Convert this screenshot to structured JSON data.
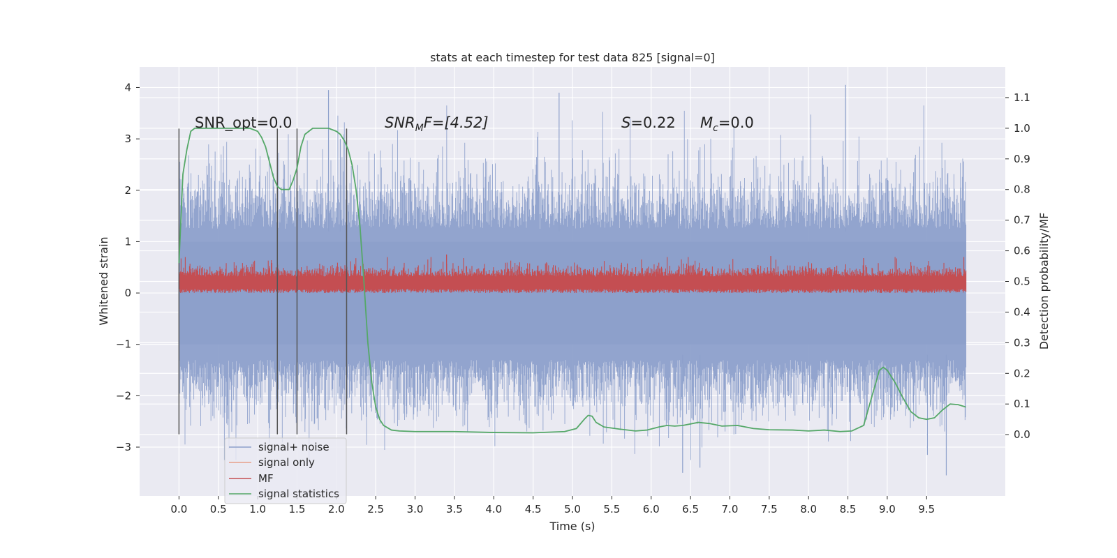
{
  "chart_data": {
    "type": "line",
    "title": "stats at each timestep for test data 825 [signal=0]",
    "xlabel": "Time (s)",
    "ylabel": "Whitened strain",
    "y2label": "Detection probability/MF",
    "xlim": [
      -0.5,
      10.5
    ],
    "ylim": [
      -3.95,
      4.4
    ],
    "y2lim": [
      -0.2,
      1.2
    ],
    "xticks": [
      "0.0",
      "0.5",
      "1.0",
      "1.5",
      "2.0",
      "2.5",
      "3.0",
      "3.5",
      "4.0",
      "4.5",
      "5.0",
      "5.5",
      "6.0",
      "6.5",
      "7.0",
      "7.5",
      "8.0",
      "8.5",
      "9.0",
      "9.5"
    ],
    "yticks": [
      "4",
      "3",
      "2",
      "1",
      "0",
      "−1",
      "−2",
      "−3"
    ],
    "y2ticks": [
      "1.1",
      "1.0",
      "0.9",
      "0.8",
      "0.7",
      "0.6",
      "0.5",
      "0.4",
      "0.3",
      "0.2",
      "0.1",
      "0.0"
    ],
    "grid": true,
    "legend_position": "lower-left",
    "annotations": {
      "snr_opt": "SNR_opt=0.0",
      "snr_mf_prefix": "SNR",
      "snr_mf_sub": "M",
      "snr_mf_suffix": "F=[4.52]",
      "s_var": "S",
      "s_val": "=0.22",
      "mc_var": "M",
      "mc_sub": "c",
      "mc_val": "=0.0"
    },
    "vertical_markers_s": [
      0.0,
      1.25,
      1.5,
      2.13
    ],
    "noise_envelope": {
      "x_range": [
        0.0,
        10.0
      ],
      "typical_upper": 2.2,
      "typical_lower": -2.2,
      "peak_max": 4.05,
      "peak_min": -3.55
    },
    "mf_band": {
      "x_range": [
        0.0,
        10.0
      ],
      "typical_upper": 0.5,
      "typical_lower": 0.0,
      "peak_max": 0.75
    },
    "series": [
      {
        "name": "signal+ noise",
        "color": "#8da0cb"
      },
      {
        "name": "signal only",
        "color": "#e8a08a"
      },
      {
        "name": "MF",
        "color": "#c44e52"
      },
      {
        "name": "signal statistics",
        "color": "#55a868",
        "x": [
          0.0,
          0.05,
          0.1,
          0.15,
          0.2,
          0.3,
          0.4,
          0.5,
          0.6,
          0.7,
          0.8,
          0.9,
          1.0,
          1.05,
          1.1,
          1.15,
          1.2,
          1.25,
          1.3,
          1.35,
          1.4,
          1.45,
          1.5,
          1.55,
          1.6,
          1.65,
          1.7,
          1.8,
          1.9,
          2.0,
          2.05,
          2.1,
          2.15,
          2.2,
          2.25,
          2.3,
          2.35,
          2.4,
          2.45,
          2.5,
          2.55,
          2.6,
          2.7,
          2.8,
          3.0,
          3.5,
          4.0,
          4.5,
          4.9,
          5.05,
          5.15,
          5.2,
          5.25,
          5.3,
          5.4,
          5.6,
          5.8,
          5.95,
          6.1,
          6.2,
          6.3,
          6.4,
          6.6,
          6.75,
          6.9,
          7.1,
          7.3,
          7.5,
          7.8,
          8.0,
          8.2,
          8.4,
          8.55,
          8.7,
          8.8,
          8.9,
          8.95,
          9.0,
          9.1,
          9.2,
          9.3,
          9.4,
          9.5,
          9.6,
          9.7,
          9.8,
          9.9,
          10.0
        ],
        "values": [
          0.56,
          0.85,
          0.93,
          0.99,
          1.0,
          1.0,
          1.0,
          1.0,
          1.0,
          1.0,
          1.0,
          1.0,
          0.99,
          0.97,
          0.94,
          0.89,
          0.84,
          0.81,
          0.8,
          0.8,
          0.8,
          0.83,
          0.87,
          0.94,
          0.98,
          0.99,
          1.0,
          1.0,
          1.0,
          0.99,
          0.98,
          0.96,
          0.93,
          0.88,
          0.8,
          0.68,
          0.5,
          0.3,
          0.17,
          0.09,
          0.05,
          0.03,
          0.015,
          0.012,
          0.01,
          0.01,
          0.007,
          0.006,
          0.01,
          0.02,
          0.05,
          0.063,
          0.06,
          0.04,
          0.025,
          0.018,
          0.012,
          0.015,
          0.025,
          0.03,
          0.028,
          0.03,
          0.04,
          0.036,
          0.028,
          0.03,
          0.02,
          0.016,
          0.015,
          0.012,
          0.015,
          0.01,
          0.012,
          0.03,
          0.12,
          0.21,
          0.22,
          0.21,
          0.17,
          0.12,
          0.075,
          0.055,
          0.05,
          0.055,
          0.08,
          0.1,
          0.098,
          0.09
        ]
      }
    ]
  }
}
